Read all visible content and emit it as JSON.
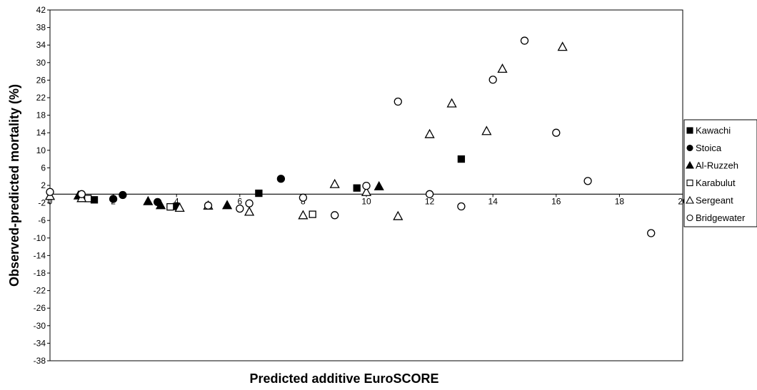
{
  "chart_data": {
    "type": "scatter",
    "xlabel": "Predicted additive EuroSCORE",
    "ylabel": "Observed-predicted mortality (%)",
    "xlim": [
      0,
      20
    ],
    "ylim": [
      -38,
      42
    ],
    "xticks": [
      0,
      2,
      4,
      6,
      8,
      10,
      12,
      14,
      16,
      18,
      20
    ],
    "yticks": [
      42,
      38,
      34,
      30,
      26,
      22,
      18,
      14,
      10,
      6,
      2,
      -2,
      -6,
      -10,
      -14,
      -18,
      -22,
      -26,
      -30,
      -34,
      -38
    ],
    "grid": false,
    "legend_position": "right",
    "series": [
      {
        "name": "Kawachi",
        "marker": "square-filled",
        "points": [
          [
            1.4,
            -1.3
          ],
          [
            4.0,
            -2.8
          ],
          [
            6.6,
            0.2
          ],
          [
            9.7,
            1.4
          ],
          [
            13.0,
            8.0
          ]
        ]
      },
      {
        "name": "Stoica",
        "marker": "circle-filled",
        "points": [
          [
            2.0,
            -1.1
          ],
          [
            2.3,
            -0.2
          ],
          [
            3.4,
            -1.8
          ],
          [
            7.3,
            3.5
          ]
        ]
      },
      {
        "name": "Al-Ruzzeh",
        "marker": "triangle-filled",
        "points": [
          [
            0.9,
            -0.3
          ],
          [
            3.1,
            -1.6
          ],
          [
            3.5,
            -2.5
          ],
          [
            5.6,
            -2.5
          ],
          [
            10.4,
            1.8
          ]
        ]
      },
      {
        "name": "Karabulut",
        "marker": "square-open",
        "points": [
          [
            1.2,
            -1.0
          ],
          [
            3.8,
            -2.9
          ],
          [
            8.3,
            -4.6
          ]
        ]
      },
      {
        "name": "Sergeant",
        "marker": "triangle-open",
        "points": [
          [
            0.0,
            -0.4
          ],
          [
            1.0,
            -0.9
          ],
          [
            4.1,
            -3.1
          ],
          [
            5.0,
            -2.6
          ],
          [
            6.3,
            -4.0
          ],
          [
            8.0,
            -4.8
          ],
          [
            9.0,
            2.3
          ],
          [
            10.0,
            0.5
          ],
          [
            11.0,
            -5.0
          ],
          [
            12.0,
            13.7
          ],
          [
            12.7,
            20.7
          ],
          [
            13.8,
            14.4
          ],
          [
            14.3,
            28.6
          ],
          [
            16.2,
            33.6
          ]
        ]
      },
      {
        "name": "Bridgewater",
        "marker": "circle-open",
        "points": [
          [
            0.0,
            0.5
          ],
          [
            1.0,
            0.0
          ],
          [
            5.0,
            -2.6
          ],
          [
            6.0,
            -3.3
          ],
          [
            6.3,
            -2.1
          ],
          [
            8.0,
            -0.8
          ],
          [
            9.0,
            -4.8
          ],
          [
            10.0,
            1.9
          ],
          [
            11.0,
            21.1
          ],
          [
            12.0,
            0.0
          ],
          [
            13.0,
            -2.8
          ],
          [
            14.0,
            26.1
          ],
          [
            15.0,
            35.0
          ],
          [
            16.0,
            14.0
          ],
          [
            17.0,
            3.0
          ],
          [
            19.0,
            -8.9
          ]
        ]
      }
    ]
  }
}
